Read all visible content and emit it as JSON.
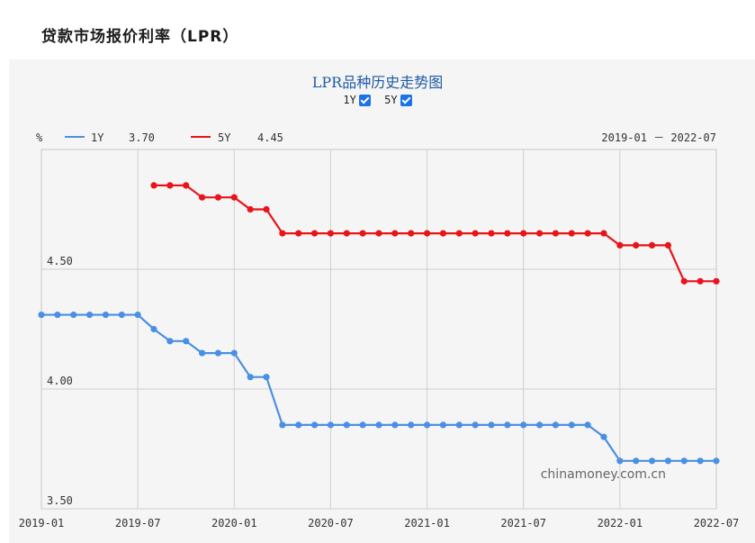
{
  "page": {
    "title": "贷款市场报价利率（LPR）"
  },
  "chart_title": "LPR品种历史走势图",
  "toggles": [
    {
      "label": "1Y",
      "checked": true
    },
    {
      "label": "5Y",
      "checked": true
    }
  ],
  "legend": {
    "unit": "%",
    "range_text": "2019-01 － 2022-07",
    "items": [
      {
        "name": "1Y",
        "value": "3.70",
        "color": "#4a90e2"
      },
      {
        "name": "5Y",
        "value": "4.45",
        "color": "#e8141b"
      }
    ]
  },
  "watermark": "chinamoney.com.cn",
  "chart_data": {
    "type": "line",
    "title": "LPR品种历史走势图",
    "ylabel": "%",
    "ylim": [
      3.5,
      5.0
    ],
    "yticks": [
      "3.50",
      "4.00",
      "4.50"
    ],
    "xticks": [
      "2019-01",
      "2019-07",
      "2020-01",
      "2020-07",
      "2021-01",
      "2021-07",
      "2022-01",
      "2022-07"
    ],
    "grid": true,
    "legend_position": "top-left",
    "x": [
      "2019-01",
      "2019-02",
      "2019-03",
      "2019-04",
      "2019-05",
      "2019-06",
      "2019-07",
      "2019-08",
      "2019-09",
      "2019-10",
      "2019-11",
      "2019-12",
      "2020-01",
      "2020-02",
      "2020-03",
      "2020-04",
      "2020-05",
      "2020-06",
      "2020-07",
      "2020-08",
      "2020-09",
      "2020-10",
      "2020-11",
      "2020-12",
      "2021-01",
      "2021-02",
      "2021-03",
      "2021-04",
      "2021-05",
      "2021-06",
      "2021-07",
      "2021-08",
      "2021-09",
      "2021-10",
      "2021-11",
      "2021-12",
      "2022-01",
      "2022-02",
      "2022-03",
      "2022-04",
      "2022-05",
      "2022-06",
      "2022-07"
    ],
    "series": [
      {
        "name": "1Y",
        "color": "#4a90e2",
        "values": [
          4.31,
          4.31,
          4.31,
          4.31,
          4.31,
          4.31,
          4.31,
          4.25,
          4.2,
          4.2,
          4.15,
          4.15,
          4.15,
          4.05,
          4.05,
          3.85,
          3.85,
          3.85,
          3.85,
          3.85,
          3.85,
          3.85,
          3.85,
          3.85,
          3.85,
          3.85,
          3.85,
          3.85,
          3.85,
          3.85,
          3.85,
          3.85,
          3.85,
          3.85,
          3.85,
          3.8,
          3.7,
          3.7,
          3.7,
          3.7,
          3.7,
          3.7,
          3.7
        ]
      },
      {
        "name": "5Y",
        "color": "#e8141b",
        "values": [
          null,
          null,
          null,
          null,
          null,
          null,
          null,
          4.85,
          4.85,
          4.85,
          4.8,
          4.8,
          4.8,
          4.75,
          4.75,
          4.65,
          4.65,
          4.65,
          4.65,
          4.65,
          4.65,
          4.65,
          4.65,
          4.65,
          4.65,
          4.65,
          4.65,
          4.65,
          4.65,
          4.65,
          4.65,
          4.65,
          4.65,
          4.65,
          4.65,
          4.65,
          4.6,
          4.6,
          4.6,
          4.6,
          4.45,
          4.45,
          4.45
        ]
      }
    ]
  }
}
